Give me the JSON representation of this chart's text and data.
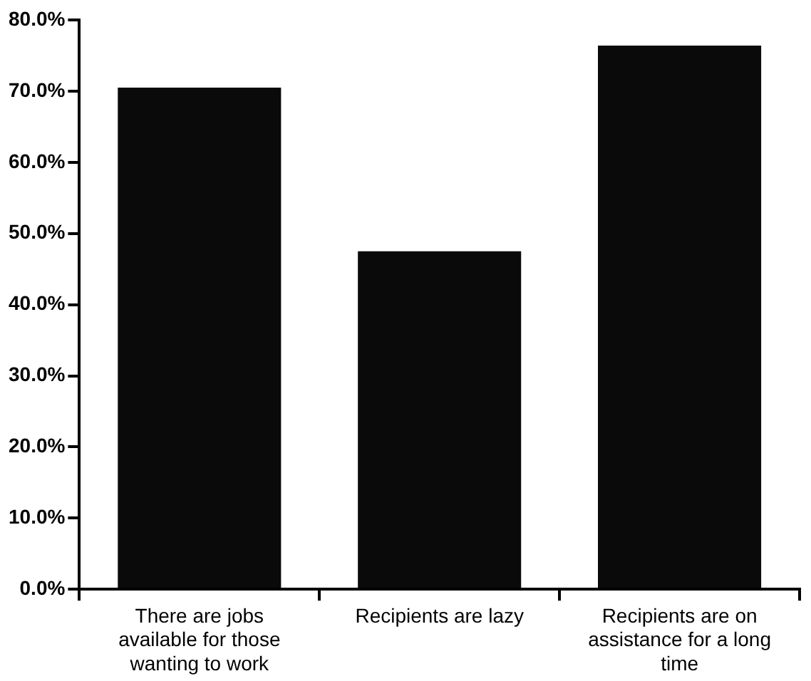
{
  "chart_data": {
    "type": "bar",
    "categories": [
      "There are jobs available for those wanting to work",
      "Recipients are lazy",
      "Recipients are on assistance for a long time"
    ],
    "values": [
      70.5,
      47.5,
      76.4
    ],
    "color": "#0a0a0a",
    "ylim": [
      0,
      80
    ],
    "yticks": [
      {
        "value": 0,
        "label": "0.0%"
      },
      {
        "value": 10,
        "label": "10.0%"
      },
      {
        "value": 20,
        "label": "20.0%"
      },
      {
        "value": 30,
        "label": "30.0%"
      },
      {
        "value": 40,
        "label": "40.0%"
      },
      {
        "value": 50,
        "label": "50.0%"
      },
      {
        "value": 60,
        "label": "60.0%"
      },
      {
        "value": 70,
        "label": "70.0%"
      },
      {
        "value": 80,
        "label": "80.0%"
      }
    ],
    "grid": false,
    "legend": false
  }
}
